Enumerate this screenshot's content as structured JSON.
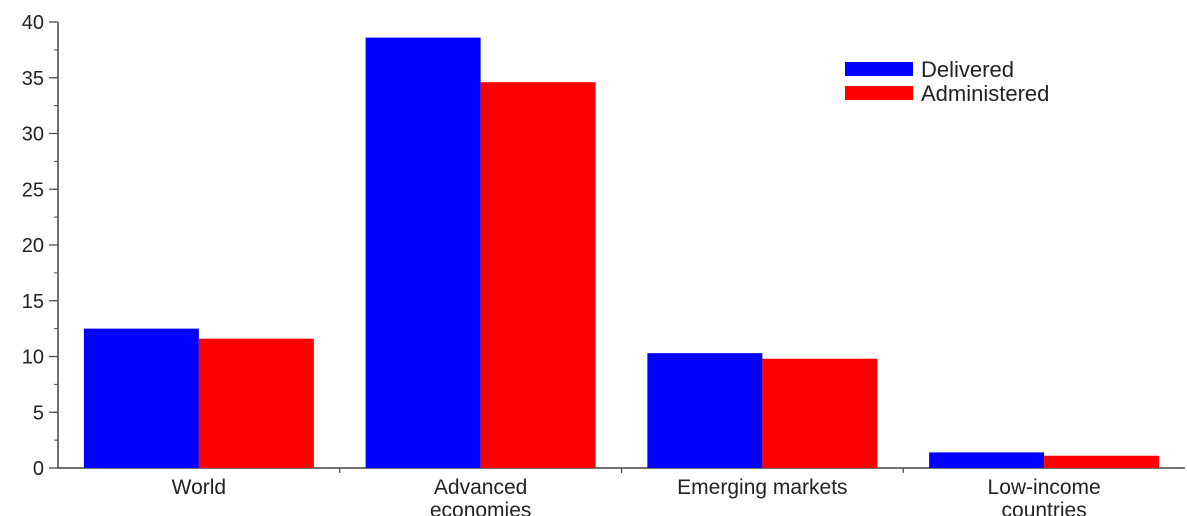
{
  "chart_data": {
    "type": "bar",
    "categories": [
      [
        "World"
      ],
      [
        "Advanced",
        "economies"
      ],
      [
        "Emerging markets"
      ],
      [
        "Low-income",
        "countries"
      ]
    ],
    "series": [
      {
        "name": "Delivered",
        "color": "#0000ff",
        "values": [
          12.5,
          38.6,
          10.3,
          1.4
        ]
      },
      {
        "name": "Administered",
        "color": "#ff0000",
        "values": [
          11.6,
          34.6,
          9.8,
          1.1
        ]
      }
    ],
    "ylim": [
      0,
      40
    ],
    "yticks": [
      0,
      5,
      10,
      15,
      20,
      25,
      30,
      35,
      40
    ],
    "minor_ytick_step": 2.5,
    "grid": false,
    "legend_position": "top-right",
    "title": "",
    "xlabel": "",
    "ylabel": ""
  }
}
